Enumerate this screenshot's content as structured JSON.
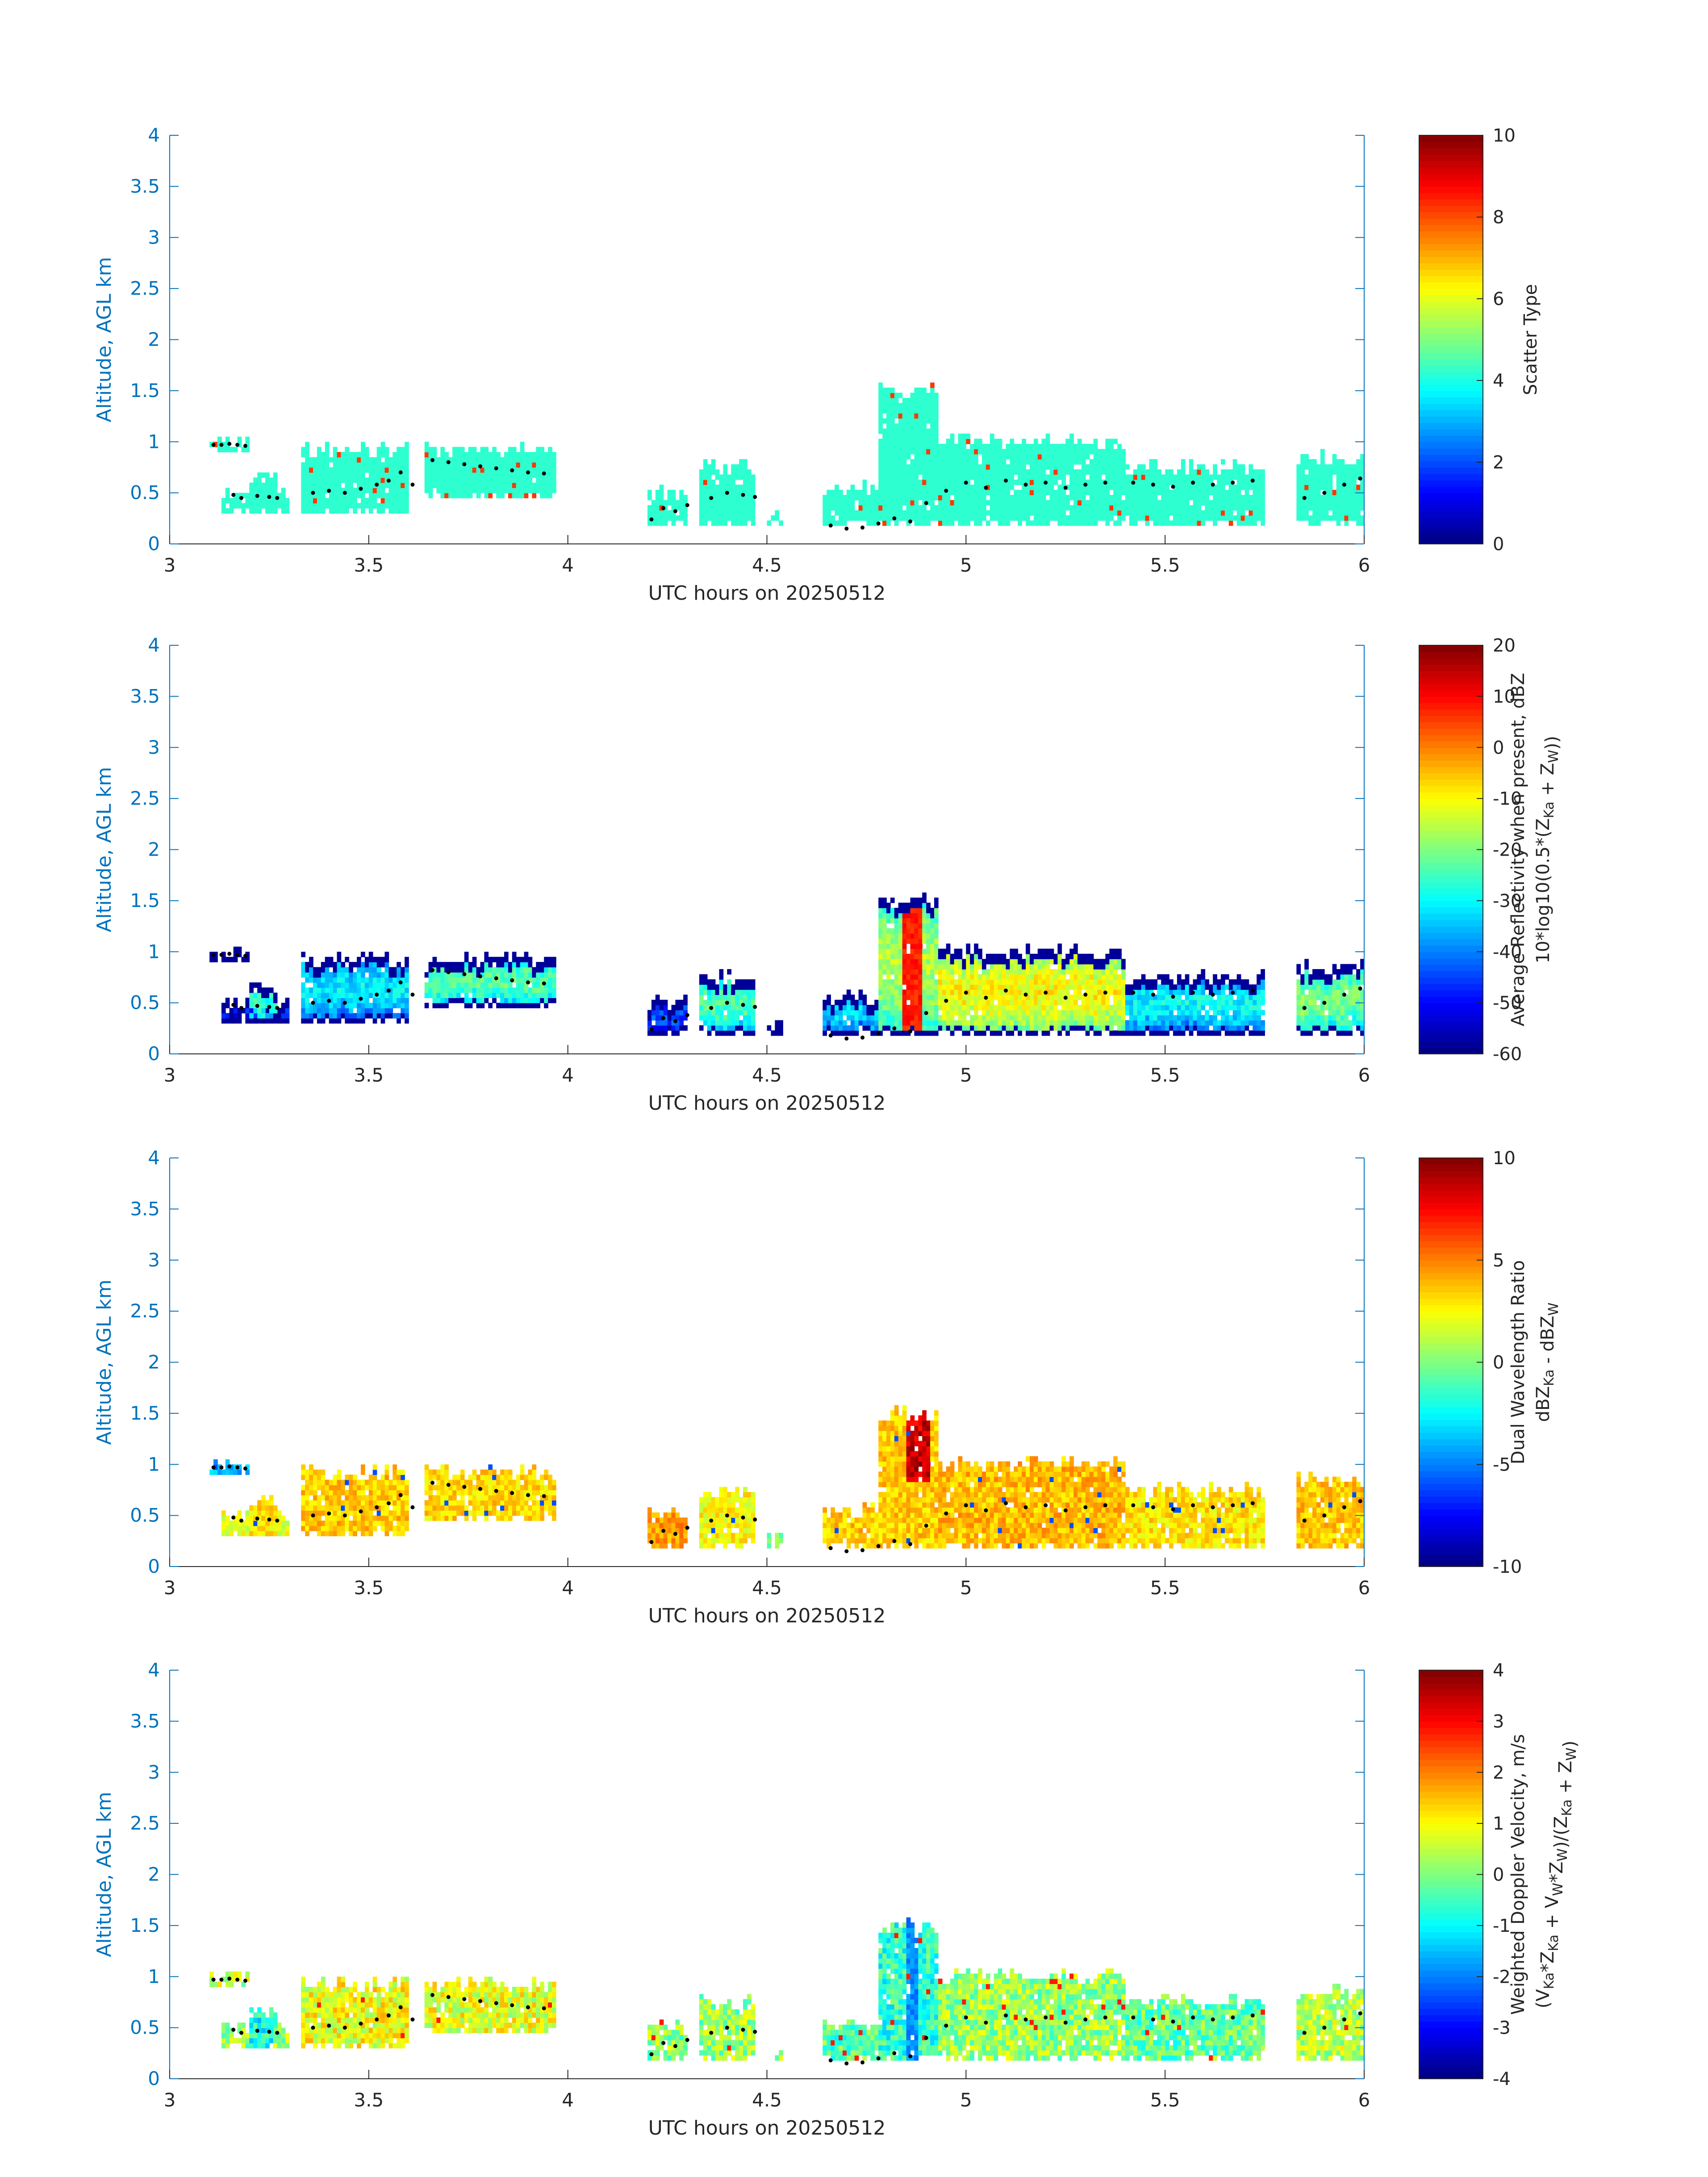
{
  "figure": {
    "colors": {
      "axis": "#0072BD",
      "text": "#262626",
      "dot": "#000000"
    }
  },
  "chart_data": [
    {
      "type": "heatmap",
      "title": "",
      "xlabel": "UTC hours on 20250512",
      "ylabel": "Altitude, AGL km",
      "xlim": [
        3,
        6
      ],
      "ylim": [
        0,
        4
      ],
      "xticks": [
        "3",
        "3.5",
        "4",
        "4.5",
        "5",
        "5.5",
        "6"
      ],
      "yticks": [
        "0",
        "0.5",
        "1",
        "1.5",
        "2",
        "2.5",
        "3",
        "3.5",
        "4"
      ],
      "colorbar": {
        "label": "Scatter Type",
        "label2": "",
        "range": [
          0,
          10
        ],
        "ticks": [
          "0",
          "2",
          "4",
          "6",
          "8",
          "10"
        ],
        "colormap": "jet"
      },
      "field": "scatter"
    },
    {
      "type": "heatmap",
      "title": "",
      "xlabel": "UTC hours on 20250512",
      "ylabel": "Altitude, AGL km",
      "xlim": [
        3,
        6
      ],
      "ylim": [
        0,
        4
      ],
      "xticks": [
        "3",
        "3.5",
        "4",
        "4.5",
        "5",
        "5.5",
        "6"
      ],
      "yticks": [
        "0",
        "0.5",
        "1",
        "1.5",
        "2",
        "2.5",
        "3",
        "3.5",
        "4"
      ],
      "colorbar": {
        "label": "Average Reflectivity when present, dBZ",
        "label2": "10*log10(0.5*(ZKa + ZW))",
        "range": [
          -60,
          20
        ],
        "ticks": [
          "-60",
          "-50",
          "-40",
          "-30",
          "-20",
          "-10",
          "0",
          "10",
          "20"
        ],
        "colormap": "jet"
      },
      "field": "reflectivity"
    },
    {
      "type": "heatmap",
      "title": "",
      "xlabel": "UTC hours on 20250512",
      "ylabel": "Altitude, AGL km",
      "xlim": [
        3,
        6
      ],
      "ylim": [
        0,
        4
      ],
      "xticks": [
        "3",
        "3.5",
        "4",
        "4.5",
        "5",
        "5.5",
        "6"
      ],
      "yticks": [
        "0",
        "0.5",
        "1",
        "1.5",
        "2",
        "2.5",
        "3",
        "3.5",
        "4"
      ],
      "colorbar": {
        "label": "Dual Wavelength Ratio",
        "label2": "dBZKa - dBZW",
        "range": [
          -10,
          10
        ],
        "ticks": [
          "-10",
          "-5",
          "0",
          "5",
          "10"
        ],
        "colormap": "jet"
      },
      "field": "dwr"
    },
    {
      "type": "heatmap",
      "title": "",
      "xlabel": "UTC hours on 20250512",
      "ylabel": "Altitude, AGL km",
      "xlim": [
        3,
        6
      ],
      "ylim": [
        0,
        4
      ],
      "xticks": [
        "3",
        "3.5",
        "4",
        "4.5",
        "5",
        "5.5",
        "6"
      ],
      "yticks": [
        "0",
        "0.5",
        "1",
        "1.5",
        "2",
        "2.5",
        "3",
        "3.5",
        "4"
      ],
      "colorbar": {
        "label": "Weighted Doppler Velocity, m/s",
        "label2": "(VKa*ZKa + VW*ZW)/(ZKa + ZW)",
        "range": [
          -4,
          4
        ],
        "ticks": [
          "-4",
          "-3",
          "-2",
          "-1",
          "0",
          "1",
          "2",
          "3",
          "4"
        ],
        "colormap": "jet"
      },
      "field": "velocity"
    }
  ],
  "cloud_layers": [
    {
      "t0": 3.1,
      "t1": 3.2,
      "base": 0.9,
      "top": 1.05,
      "ref": -50,
      "dwr": -4,
      "vel": 0.5
    },
    {
      "t0": 3.13,
      "t1": 3.3,
      "base": 0.3,
      "top": 0.55,
      "ref": -58,
      "dwr": 2,
      "vel": 0.2
    },
    {
      "t0": 3.2,
      "t1": 3.27,
      "base": 0.3,
      "top": 0.7,
      "ref": -38,
      "dwr": 3,
      "vel": -0.8
    },
    {
      "t0": 3.33,
      "t1": 3.6,
      "base": 0.3,
      "top": 0.98,
      "ref": -43,
      "dwr": 3.5,
      "vel": 0.9
    },
    {
      "t0": 3.64,
      "t1": 3.97,
      "base": 0.45,
      "top": 0.98,
      "ref": -35,
      "dwr": 3.2,
      "vel": 0.8
    },
    {
      "t0": 4.2,
      "t1": 4.3,
      "base": 0.18,
      "top": 0.55,
      "ref": -55,
      "dwr": 4.5,
      "vel": 0.1
    },
    {
      "t0": 4.33,
      "t1": 4.47,
      "base": 0.18,
      "top": 0.8,
      "ref": -36,
      "dwr": 2.5,
      "vel": 0.2
    },
    {
      "t0": 4.5,
      "t1": 4.54,
      "base": 0.18,
      "top": 0.33,
      "ref": -52,
      "dwr": 0,
      "vel": 0.1
    },
    {
      "t0": 4.64,
      "t1": 4.8,
      "base": 0.18,
      "top": 0.6,
      "ref": -45,
      "dwr": 3.5,
      "vel": -0.3
    },
    {
      "t0": 4.78,
      "t1": 4.93,
      "base": 0.18,
      "top": 1.55,
      "ref": -28,
      "dwr": 3.5,
      "vel": -0.6
    },
    {
      "t0": 4.93,
      "t1": 5.4,
      "base": 0.18,
      "top": 1.05,
      "ref": -22,
      "dwr": 3.8,
      "vel": 0.2
    },
    {
      "t0": 5.4,
      "t1": 5.75,
      "base": 0.18,
      "top": 0.8,
      "ref": -42,
      "dwr": 3.0,
      "vel": -0.2
    },
    {
      "t0": 5.83,
      "t1": 6.0,
      "base": 0.18,
      "top": 0.9,
      "ref": -32,
      "dwr": 3.5,
      "vel": 0.4
    }
  ],
  "cloud_base_dots": [
    [
      3.11,
      0.97
    ],
    [
      3.13,
      0.97
    ],
    [
      3.15,
      0.98
    ],
    [
      3.17,
      0.97
    ],
    [
      3.19,
      0.96
    ],
    [
      3.16,
      0.48
    ],
    [
      3.18,
      0.45
    ],
    [
      3.22,
      0.47
    ],
    [
      3.25,
      0.46
    ],
    [
      3.27,
      0.45
    ],
    [
      3.36,
      0.5
    ],
    [
      3.4,
      0.52
    ],
    [
      3.44,
      0.5
    ],
    [
      3.48,
      0.54
    ],
    [
      3.52,
      0.58
    ],
    [
      3.55,
      0.62
    ],
    [
      3.58,
      0.7
    ],
    [
      3.61,
      0.58
    ],
    [
      3.66,
      0.82
    ],
    [
      3.7,
      0.8
    ],
    [
      3.74,
      0.78
    ],
    [
      3.78,
      0.76
    ],
    [
      3.82,
      0.74
    ],
    [
      3.86,
      0.72
    ],
    [
      3.9,
      0.7
    ],
    [
      3.94,
      0.69
    ],
    [
      4.21,
      0.24
    ],
    [
      4.24,
      0.35
    ],
    [
      4.27,
      0.32
    ],
    [
      4.3,
      0.38
    ],
    [
      4.36,
      0.45
    ],
    [
      4.4,
      0.5
    ],
    [
      4.44,
      0.48
    ],
    [
      4.47,
      0.46
    ],
    [
      4.66,
      0.18
    ],
    [
      4.7,
      0.15
    ],
    [
      4.74,
      0.16
    ],
    [
      4.78,
      0.2
    ],
    [
      4.82,
      0.25
    ],
    [
      4.86,
      0.22
    ],
    [
      4.9,
      0.4
    ],
    [
      4.95,
      0.52
    ],
    [
      5.0,
      0.6
    ],
    [
      5.05,
      0.55
    ],
    [
      5.1,
      0.62
    ],
    [
      5.15,
      0.58
    ],
    [
      5.2,
      0.6
    ],
    [
      5.25,
      0.55
    ],
    [
      5.3,
      0.58
    ],
    [
      5.35,
      0.6
    ],
    [
      5.42,
      0.6
    ],
    [
      5.47,
      0.58
    ],
    [
      5.52,
      0.56
    ],
    [
      5.57,
      0.6
    ],
    [
      5.62,
      0.58
    ],
    [
      5.67,
      0.6
    ],
    [
      5.72,
      0.62
    ],
    [
      5.85,
      0.45
    ],
    [
      5.9,
      0.5
    ],
    [
      5.95,
      0.58
    ],
    [
      5.99,
      0.64
    ]
  ]
}
